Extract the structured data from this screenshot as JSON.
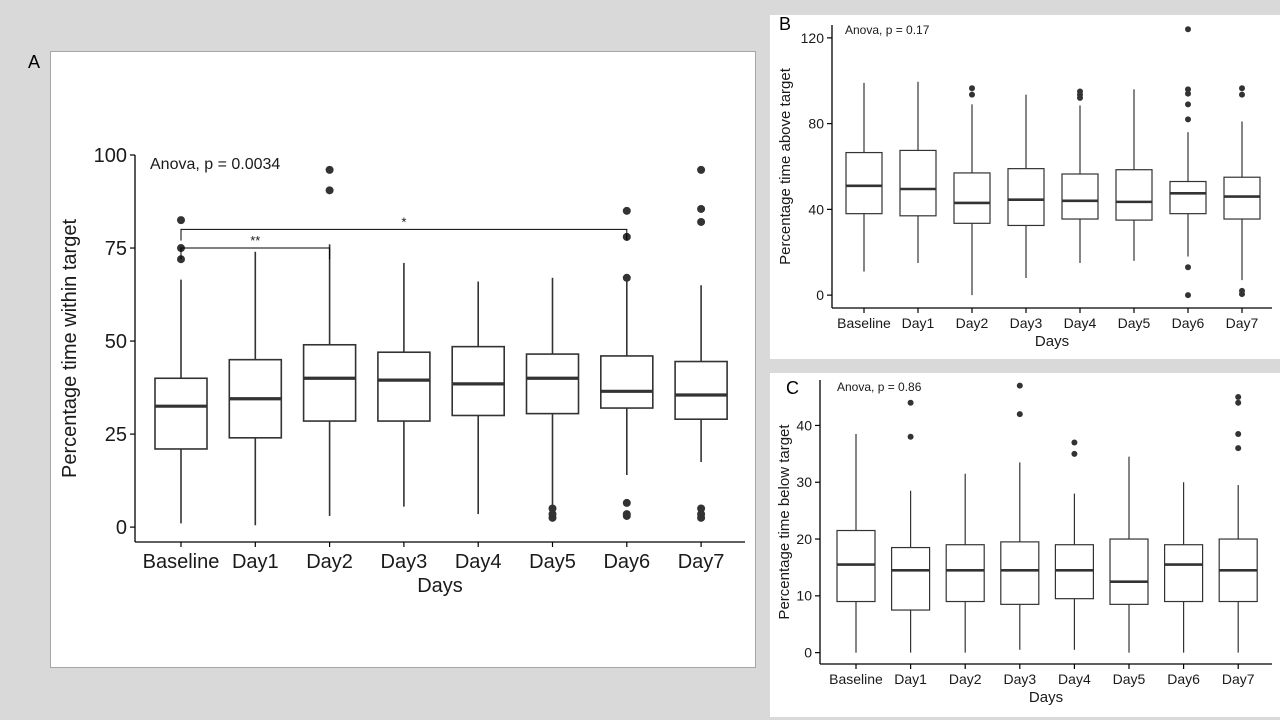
{
  "panels": {
    "a": {
      "letter": "A"
    },
    "b": {
      "letter": "B"
    },
    "c": {
      "letter": "C"
    }
  },
  "chart_data": [
    {
      "id": "A",
      "type": "box",
      "annotation": "Anova, p = 0.0034",
      "xlabel": "Days",
      "ylabel": "Percentage time within target",
      "ylim": [
        -4,
        100
      ],
      "yticks": [
        0,
        25,
        50,
        75,
        100
      ],
      "grid": false,
      "categories": [
        "Baseline",
        "Day1",
        "Day2",
        "Day3",
        "Day4",
        "Day5",
        "Day6",
        "Day7"
      ],
      "boxes": [
        {
          "q1": 21,
          "median": 32.5,
          "q3": 40,
          "whisker_low": 1,
          "whisker_high": 66.5,
          "outliers": [
            72,
            75,
            82.5
          ]
        },
        {
          "q1": 24,
          "median": 34.5,
          "q3": 45,
          "whisker_low": 0.5,
          "whisker_high": 74,
          "outliers": []
        },
        {
          "q1": 28.5,
          "median": 40,
          "q3": 49,
          "whisker_low": 3,
          "whisker_high": 76,
          "outliers": [
            90.5,
            96
          ]
        },
        {
          "q1": 28.5,
          "median": 39.5,
          "q3": 47,
          "whisker_low": 5.5,
          "whisker_high": 71,
          "outliers": []
        },
        {
          "q1": 30,
          "median": 38.5,
          "q3": 48.5,
          "whisker_low": 3.5,
          "whisker_high": 66,
          "outliers": []
        },
        {
          "q1": 30.5,
          "median": 40,
          "q3": 46.5,
          "whisker_low": 6,
          "whisker_high": 67,
          "outliers": [
            2.5,
            3.5,
            5
          ]
        },
        {
          "q1": 32,
          "median": 36.5,
          "q3": 46,
          "whisker_low": 14,
          "whisker_high": 66,
          "outliers": [
            3,
            3.5,
            6.5,
            67,
            78,
            85
          ]
        },
        {
          "q1": 29,
          "median": 35.5,
          "q3": 44.5,
          "whisker_low": 17.5,
          "whisker_high": 65,
          "outliers": [
            2.5,
            3.5,
            5,
            82,
            85.5,
            96
          ]
        }
      ],
      "brackets": [
        {
          "from": "Baseline",
          "to": "Day2",
          "y": 75,
          "tick_to": 72,
          "label": "**"
        },
        {
          "from": "Baseline",
          "to": "Day6",
          "y": 80,
          "tick_to": 77,
          "label": "*"
        }
      ]
    },
    {
      "id": "B",
      "type": "box",
      "annotation": "Anova, p = 0.17",
      "xlabel": "Days",
      "ylabel": "Percentage time above target",
      "ylim": [
        -6,
        126
      ],
      "yticks": [
        0,
        40,
        80,
        120
      ],
      "grid": false,
      "categories": [
        "Baseline",
        "Day1",
        "Day2",
        "Day3",
        "Day4",
        "Day5",
        "Day6",
        "Day7"
      ],
      "boxes": [
        {
          "q1": 38,
          "median": 51,
          "q3": 66.5,
          "whisker_low": 11,
          "whisker_high": 99,
          "outliers": []
        },
        {
          "q1": 37,
          "median": 49.5,
          "q3": 67.5,
          "whisker_low": 15,
          "whisker_high": 99.5,
          "outliers": []
        },
        {
          "q1": 33.5,
          "median": 43,
          "q3": 57,
          "whisker_low": 0,
          "whisker_high": 89,
          "outliers": [
            93.5,
            96.5
          ]
        },
        {
          "q1": 32.5,
          "median": 44.5,
          "q3": 59,
          "whisker_low": 8,
          "whisker_high": 93.5,
          "outliers": []
        },
        {
          "q1": 35.5,
          "median": 44,
          "q3": 56.5,
          "whisker_low": 15,
          "whisker_high": 88.5,
          "outliers": [
            92,
            93.5,
            95
          ]
        },
        {
          "q1": 35,
          "median": 43.5,
          "q3": 58.5,
          "whisker_low": 16,
          "whisker_high": 96,
          "outliers": []
        },
        {
          "q1": 38,
          "median": 47.5,
          "q3": 53,
          "whisker_low": 18,
          "whisker_high": 76,
          "outliers": [
            0,
            13,
            82,
            89,
            94,
            96,
            124
          ]
        },
        {
          "q1": 35.5,
          "median": 46,
          "q3": 55,
          "whisker_low": 7,
          "whisker_high": 81,
          "outliers": [
            0.5,
            2,
            93.5,
            96.5
          ]
        }
      ]
    },
    {
      "id": "C",
      "type": "box",
      "annotation": "Anova, p = 0.86",
      "xlabel": "Days",
      "ylabel": "Percentage time below target",
      "ylim": [
        -2,
        48
      ],
      "yticks": [
        0,
        10,
        20,
        30,
        40
      ],
      "grid": false,
      "categories": [
        "Baseline",
        "Day1",
        "Day2",
        "Day3",
        "Day4",
        "Day5",
        "Day6",
        "Day7"
      ],
      "boxes": [
        {
          "q1": 9,
          "median": 15.5,
          "q3": 21.5,
          "whisker_low": 0,
          "whisker_high": 38.5,
          "outliers": []
        },
        {
          "q1": 7.5,
          "median": 14.5,
          "q3": 18.5,
          "whisker_low": 0,
          "whisker_high": 28.5,
          "outliers": [
            38,
            44
          ]
        },
        {
          "q1": 9,
          "median": 14.5,
          "q3": 19,
          "whisker_low": 0,
          "whisker_high": 31.5,
          "outliers": []
        },
        {
          "q1": 8.5,
          "median": 14.5,
          "q3": 19.5,
          "whisker_low": 0.5,
          "whisker_high": 33.5,
          "outliers": [
            42,
            47
          ]
        },
        {
          "q1": 9.5,
          "median": 14.5,
          "q3": 19,
          "whisker_low": 0.5,
          "whisker_high": 28,
          "outliers": [
            35,
            37
          ]
        },
        {
          "q1": 8.5,
          "median": 12.5,
          "q3": 20,
          "whisker_low": 0,
          "whisker_high": 34.5,
          "outliers": []
        },
        {
          "q1": 9,
          "median": 15.5,
          "q3": 19,
          "whisker_low": 0,
          "whisker_high": 30,
          "outliers": []
        },
        {
          "q1": 9,
          "median": 14.5,
          "q3": 20,
          "whisker_low": 0,
          "whisker_high": 29.5,
          "outliers": [
            36,
            38.5,
            44,
            45
          ]
        }
      ]
    }
  ]
}
